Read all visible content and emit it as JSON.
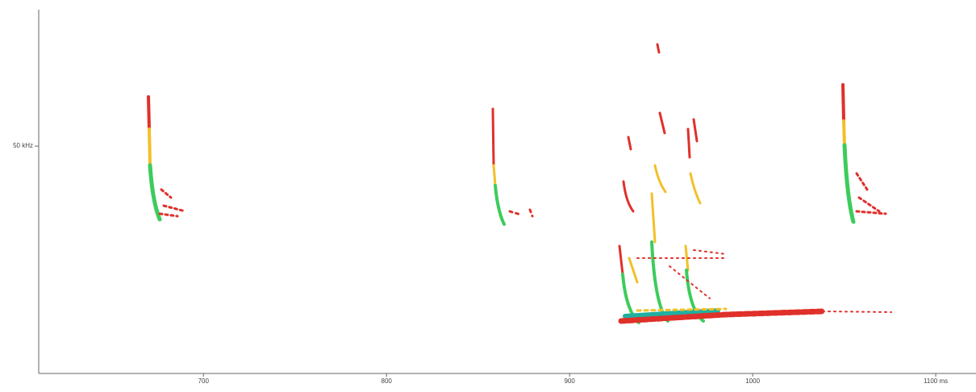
{
  "chart_data": {
    "type": "spectrogram",
    "xlim": [
      610,
      1122
    ],
    "xticks": [
      700,
      800,
      900,
      1000,
      {
        "value": 1100,
        "label": "1100 ms"
      }
    ],
    "ylim": [
      0,
      80
    ],
    "yticks": [
      {
        "value": 50,
        "label": "50 kHz"
      }
    ]
  }
}
